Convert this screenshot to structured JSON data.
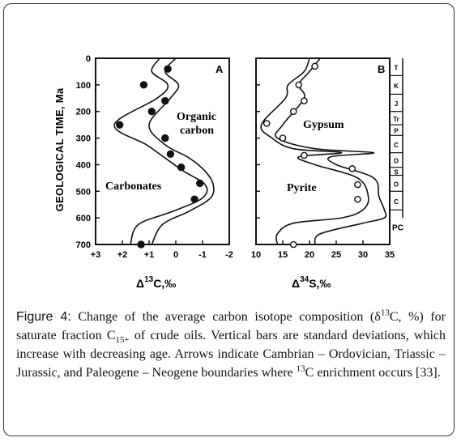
{
  "figure": {
    "ylabel": "GEOLOGICAL TIME, Ma",
    "panels": [
      {
        "letter": "A",
        "xlabel_prefix": "Δ",
        "xlabel_sup": "13",
        "xlabel_suffix": "C,‰",
        "region_labels": [
          "Organic",
          "carbon",
          "Carbonates"
        ]
      },
      {
        "letter": "B",
        "xlabel_prefix": "Δ",
        "xlabel_sup": "34",
        "xlabel_suffix": "S,‰",
        "region_labels": [
          "Gypsum",
          "Pyrite"
        ]
      }
    ],
    "periods": [
      "T",
      "K",
      "J",
      "Tr",
      "P",
      "C",
      "D",
      "S",
      "O",
      "C",
      "PC"
    ]
  },
  "chart_data": [
    {
      "type": "line",
      "panel": "A",
      "xlabel": "Δ13C,‰",
      "ylabel": "GEOLOGICAL TIME, Ma",
      "xlim": [
        3,
        -2
      ],
      "ylim": [
        700,
        0
      ],
      "x_ticks": [
        "+3",
        "+2",
        "+1",
        "0",
        "-1",
        "-2"
      ],
      "x_tick_values": [
        3,
        2,
        1,
        0,
        -1,
        -2
      ],
      "y_ticks": [
        "0",
        "100",
        "200",
        "300",
        "400",
        "500",
        "600",
        "700"
      ],
      "y_tick_values": [
        0,
        100,
        200,
        300,
        400,
        500,
        600,
        700
      ],
      "series": [
        {
          "x": [
            0.6,
            0.9,
            0.3,
            0.7,
            2.3,
            1.1,
            0.4,
            -0.3,
            -1.1,
            -1.0,
            0.1,
            1.4,
            1.7
          ],
          "y": [
            0,
            50,
            100,
            150,
            250,
            325,
            375,
            425,
            475,
            525,
            575,
            625,
            700
          ]
        },
        {
          "x": [
            0.0,
            0.4,
            -0.1,
            0.2,
            1.0,
            0.4,
            -0.5,
            -1.1,
            -1.4,
            -1.3,
            -0.5,
            0.5,
            0.9
          ],
          "y": [
            0,
            50,
            100,
            150,
            250,
            325,
            375,
            425,
            475,
            525,
            575,
            625,
            700
          ]
        }
      ],
      "points": {
        "x": [
          0.3,
          1.2,
          0.4,
          0.9,
          2.1,
          0.4,
          0.2,
          -0.2,
          -0.9,
          -0.7,
          1.3
        ],
        "y": [
          40,
          100,
          160,
          200,
          250,
          300,
          360,
          410,
          470,
          530,
          700
        ]
      }
    },
    {
      "type": "line",
      "panel": "B",
      "xlabel": "Δ34S,‰",
      "ylabel": "GEOLOGICAL TIME, Ma",
      "xlim": [
        10,
        35
      ],
      "ylim": [
        700,
        0
      ],
      "x_ticks": [
        "10",
        "15",
        "20",
        "25",
        "30",
        "35"
      ],
      "x_tick_values": [
        10,
        15,
        20,
        25,
        30,
        35
      ],
      "series": [
        {
          "x": [
            20,
            19,
            16,
            15.5,
            11,
            13,
            17,
            26,
            18,
            21,
            29,
            31,
            30,
            26,
            17,
            14,
            14
          ],
          "y": [
            0,
            50,
            100,
            150,
            250,
            300,
            340,
            355,
            370,
            400,
            450,
            520,
            570,
            600,
            620,
            660,
            700
          ]
        },
        {
          "x": [
            22,
            20,
            18,
            19,
            15,
            14,
            21,
            32,
            24,
            25,
            32,
            33,
            34,
            34,
            30,
            22,
            21
          ],
          "y": [
            0,
            50,
            100,
            150,
            250,
            300,
            340,
            355,
            370,
            400,
            450,
            520,
            570,
            600,
            620,
            660,
            700
          ]
        }
      ],
      "points": {
        "x": [
          21,
          18,
          19,
          17,
          12,
          15,
          19,
          28,
          29,
          29,
          17
        ],
        "y": [
          30,
          100,
          160,
          200,
          245,
          300,
          365,
          415,
          475,
          530,
          700
        ]
      }
    }
  ],
  "caption": {
    "label": "Figure 4:",
    "t1": " Change of the average carbon isotope composition (δ",
    "sup1": "13",
    "t2": "C, %) for saturate fraction C",
    "sub1": "15+",
    "t3": " of crude oils. Vertical bars are standard deviations, which increase with decreasing age. Arrows indicate Cambrian – Ordovician, Triassic – Jurassic, and Paleogene – Neogene boundaries where ",
    "sup2": "13",
    "t4": "C enrichment occurs [33]."
  }
}
